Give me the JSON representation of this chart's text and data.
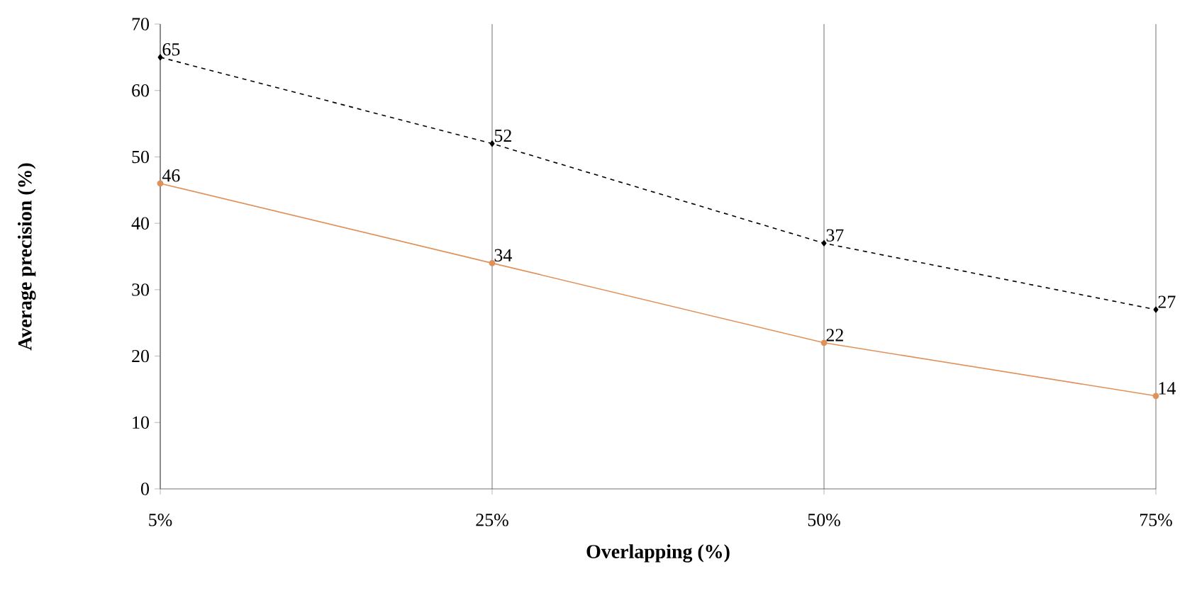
{
  "chart_data": {
    "type": "line",
    "xlabel": "Overlapping (%)",
    "ylabel": "Average precision (%)",
    "categories": [
      "5%",
      "25%",
      "50%",
      "75%"
    ],
    "series": [
      {
        "color": "#000000",
        "values": [
          65,
          52,
          37,
          27
        ],
        "line_style": "dashed",
        "marker": "diamond"
      },
      {
        "color": "#e0915a",
        "values": [
          46,
          34,
          22,
          14
        ],
        "line_style": "solid",
        "marker": "circle"
      }
    ],
    "ylim": [
      0,
      70
    ],
    "yticks": [
      0,
      10,
      20,
      30,
      40,
      50,
      60,
      70
    ],
    "grid": "x",
    "data_labels": true
  }
}
